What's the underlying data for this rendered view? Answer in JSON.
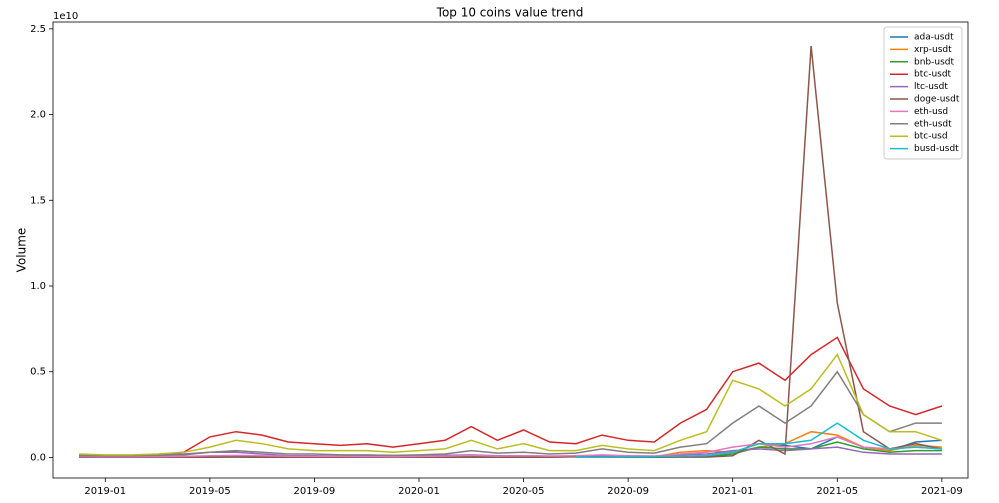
{
  "chart_data": {
    "type": "line",
    "title": "Top 10 coins value trend",
    "y_label": "Volume",
    "y_offset_label": "1e10",
    "x": [
      "2018-12",
      "2019-01",
      "2019-02",
      "2019-03",
      "2019-04",
      "2019-05",
      "2019-06",
      "2019-07",
      "2019-08",
      "2019-09",
      "2019-10",
      "2019-11",
      "2019-12",
      "2020-01",
      "2020-02",
      "2020-03",
      "2020-04",
      "2020-05",
      "2020-06",
      "2020-07",
      "2020-08",
      "2020-09",
      "2020-10",
      "2020-11",
      "2020-12",
      "2021-01",
      "2021-02",
      "2021-03",
      "2021-04",
      "2021-05",
      "2021-06",
      "2021-07",
      "2021-08",
      "2021-09"
    ],
    "xlim": [
      "2018-11",
      "2021-10"
    ],
    "xticks": [
      "2019-01",
      "2019-05",
      "2019-09",
      "2020-01",
      "2020-05",
      "2020-09",
      "2021-01",
      "2021-05",
      "2021-09"
    ],
    "ylim": [
      -0.12,
      2.54
    ],
    "yticks": [
      {
        "value": 0,
        "label": "0.0"
      },
      0.5,
      {
        "value": 1,
        "label": "1.0"
      },
      1.5,
      {
        "value": 2,
        "label": "2.0"
      },
      2.5
    ],
    "grid": false,
    "legend": "upper right",
    "series": [
      {
        "name": "ada-usdt",
        "color": "#1f77b4",
        "values": [
          0.002,
          0.002,
          0.002,
          0.003,
          0.003,
          0.004,
          0.004,
          0.003,
          0.002,
          0.002,
          0.002,
          0.002,
          0.002,
          0.002,
          0.003,
          0.004,
          0.003,
          0.003,
          0.003,
          0.004,
          0.006,
          0.004,
          0.004,
          0.005,
          0.01,
          0.03,
          0.08,
          0.07,
          0.05,
          0.12,
          0.06,
          0.04,
          0.09,
          0.1
        ]
      },
      {
        "name": "xrp-usdt",
        "color": "#ff7f0e",
        "values": [
          0.005,
          0.004,
          0.003,
          0.003,
          0.004,
          0.008,
          0.01,
          0.008,
          0.005,
          0.005,
          0.005,
          0.004,
          0.003,
          0.004,
          0.005,
          0.008,
          0.005,
          0.005,
          0.004,
          0.005,
          0.008,
          0.005,
          0.004,
          0.03,
          0.04,
          0.03,
          0.06,
          0.08,
          0.15,
          0.13,
          0.06,
          0.04,
          0.07,
          0.06
        ]
      },
      {
        "name": "bnb-usdt",
        "color": "#2ca02c",
        "values": [
          0.001,
          0.001,
          0.002,
          0.003,
          0.003,
          0.005,
          0.008,
          0.006,
          0.004,
          0.003,
          0.003,
          0.002,
          0.002,
          0.002,
          0.003,
          0.005,
          0.003,
          0.003,
          0.003,
          0.003,
          0.005,
          0.005,
          0.003,
          0.004,
          0.005,
          0.02,
          0.06,
          0.05,
          0.05,
          0.09,
          0.05,
          0.03,
          0.04,
          0.04
        ]
      },
      {
        "name": "btc-usdt",
        "color": "#d62728",
        "values": [
          0.012,
          0.01,
          0.012,
          0.015,
          0.03,
          0.12,
          0.15,
          0.13,
          0.09,
          0.08,
          0.07,
          0.08,
          0.06,
          0.08,
          0.1,
          0.18,
          0.1,
          0.16,
          0.09,
          0.08,
          0.13,
          0.1,
          0.09,
          0.2,
          0.28,
          0.5,
          0.55,
          0.45,
          0.6,
          0.7,
          0.4,
          0.3,
          0.25,
          0.3
        ]
      },
      {
        "name": "ltc-usdt",
        "color": "#9467bd",
        "values": [
          0.01,
          0.008,
          0.01,
          0.015,
          0.02,
          0.03,
          0.03,
          0.02,
          0.01,
          0.01,
          0.008,
          0.008,
          0.006,
          0.01,
          0.012,
          0.015,
          0.01,
          0.01,
          0.008,
          0.008,
          0.01,
          0.008,
          0.008,
          0.015,
          0.02,
          0.04,
          0.05,
          0.04,
          0.05,
          0.06,
          0.03,
          0.02,
          0.02,
          0.02
        ]
      },
      {
        "name": "doge-usdt",
        "color": "#8c564b",
        "values": [
          0.001,
          0.001,
          0.001,
          0.001,
          0.001,
          0.001,
          0.002,
          0.001,
          0.001,
          0.001,
          0.001,
          0.001,
          0.001,
          0.001,
          0.001,
          0.001,
          0.001,
          0.001,
          0.001,
          0.005,
          0.002,
          0.001,
          0.001,
          0.002,
          0.002,
          0.01,
          0.1,
          0.02,
          2.4,
          0.9,
          0.15,
          0.05,
          0.08,
          0.05
        ]
      },
      {
        "name": "eth-usd",
        "color": "#e377c2",
        "values": [
          0.005,
          0.004,
          0.004,
          0.005,
          0.006,
          0.01,
          0.012,
          0.01,
          0.007,
          0.006,
          0.006,
          0.005,
          0.004,
          0.006,
          0.008,
          0.012,
          0.008,
          0.01,
          0.008,
          0.01,
          0.015,
          0.01,
          0.008,
          0.02,
          0.03,
          0.06,
          0.08,
          0.06,
          0.08,
          0.12,
          0.06,
          0.05,
          0.06,
          0.05
        ]
      },
      {
        "name": "eth-usdt",
        "color": "#7f7f7f",
        "values": [
          0.01,
          0.01,
          0.01,
          0.012,
          0.015,
          0.03,
          0.04,
          0.03,
          0.02,
          0.02,
          0.015,
          0.015,
          0.012,
          0.015,
          0.02,
          0.04,
          0.025,
          0.03,
          0.02,
          0.025,
          0.05,
          0.03,
          0.025,
          0.06,
          0.08,
          0.2,
          0.3,
          0.2,
          0.3,
          0.5,
          0.25,
          0.15,
          0.2,
          0.2
        ]
      },
      {
        "name": "btc-usd",
        "color": "#bcbd22",
        "values": [
          0.02,
          0.015,
          0.015,
          0.02,
          0.03,
          0.06,
          0.1,
          0.08,
          0.05,
          0.04,
          0.04,
          0.04,
          0.03,
          0.04,
          0.05,
          0.1,
          0.05,
          0.08,
          0.04,
          0.04,
          0.07,
          0.05,
          0.04,
          0.1,
          0.15,
          0.45,
          0.4,
          0.3,
          0.4,
          0.6,
          0.25,
          0.15,
          0.15,
          0.1
        ]
      },
      {
        "name": "busd-usdt",
        "color": "#17becf",
        "values": [
          null,
          null,
          null,
          null,
          null,
          null,
          null,
          null,
          null,
          null,
          null,
          null,
          null,
          null,
          null,
          null,
          null,
          null,
          null,
          0.001,
          0.002,
          0.003,
          0.005,
          0.008,
          0.01,
          0.03,
          0.08,
          0.08,
          0.1,
          0.2,
          0.1,
          0.05,
          0.06,
          0.05
        ]
      }
    ]
  }
}
